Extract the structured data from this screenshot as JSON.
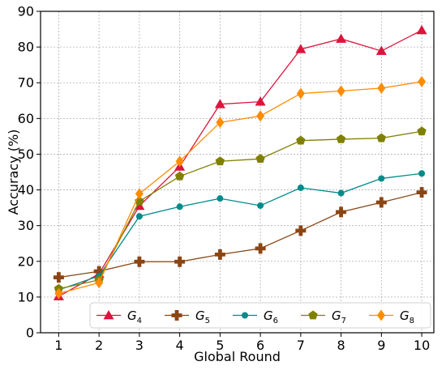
{
  "chart_data": {
    "type": "line",
    "title": "",
    "xlabel": "Global Round",
    "ylabel": "Accuracy (%)",
    "x": [
      1,
      2,
      3,
      4,
      5,
      6,
      7,
      8,
      9,
      10
    ],
    "xlim": [
      0.55,
      10.3
    ],
    "ylim": [
      0,
      90
    ],
    "xticks": [
      "1",
      "2",
      "3",
      "4",
      "5",
      "6",
      "7",
      "8",
      "9",
      "10"
    ],
    "yticks": [
      "0",
      "10",
      "20",
      "30",
      "40",
      "50",
      "60",
      "70",
      "80",
      "90"
    ],
    "grid": true,
    "legend_position": "bottom",
    "series": [
      {
        "name": "G",
        "sub": "4",
        "color": "#dc143c",
        "marker": "triangle",
        "values": [
          10.2,
          16.5,
          35.5,
          46.5,
          64.0,
          64.7,
          79.4,
          82.3,
          78.9,
          84.7
        ]
      },
      {
        "name": "G",
        "sub": "5",
        "color": "#8b4513",
        "marker": "plus",
        "values": [
          15.5,
          17.2,
          19.9,
          19.9,
          21.9,
          23.6,
          28.6,
          33.8,
          36.5,
          39.3
        ]
      },
      {
        "name": "G",
        "sub": "6",
        "color": "#008b8b",
        "marker": "circle",
        "values": [
          12.0,
          15.9,
          32.6,
          35.3,
          37.6,
          35.6,
          40.6,
          39.1,
          43.2,
          44.6
        ]
      },
      {
        "name": "G",
        "sub": "7",
        "color": "#808000",
        "marker": "pentagon",
        "values": [
          12.3,
          14.8,
          36.8,
          43.8,
          48.0,
          48.7,
          53.8,
          54.2,
          54.5,
          56.4
        ]
      },
      {
        "name": "G",
        "sub": "8",
        "color": "#ff8c00",
        "marker": "diamond",
        "values": [
          11.0,
          14.0,
          38.9,
          48.0,
          58.9,
          60.7,
          67.0,
          67.7,
          68.5,
          70.3
        ]
      }
    ]
  }
}
